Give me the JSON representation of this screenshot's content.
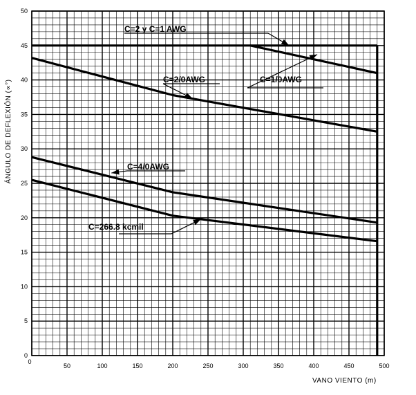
{
  "chart_data": {
    "type": "line",
    "xlabel": "VANO VIENTO (m)",
    "ylabel": "ÁNGULO DE DEFLEXIÓN (∝°)",
    "xlim": [
      0,
      500
    ],
    "ylim": [
      0,
      50
    ],
    "x_ticks": [
      0,
      50,
      100,
      150,
      200,
      250,
      300,
      350,
      400,
      450,
      500
    ],
    "y_ticks": [
      0,
      5,
      10,
      15,
      20,
      25,
      30,
      35,
      40,
      45,
      50
    ],
    "grid": true,
    "series": [
      {
        "name": "C=2 y C=1 AWG",
        "x": [
          0,
          490
        ],
        "y": [
          45,
          45
        ]
      },
      {
        "name": "C=1/0AWG",
        "x": [
          310,
          490
        ],
        "y": [
          45,
          41
        ]
      },
      {
        "name": "C=2/0AWG",
        "x": [
          0,
          200,
          490
        ],
        "y": [
          43.2,
          37.8,
          32.5
        ]
      },
      {
        "name": "C=4/0AWG",
        "x": [
          0,
          200,
          490
        ],
        "y": [
          28.8,
          23.7,
          19.3
        ]
      },
      {
        "name": "C=266.8 kcmil",
        "x": [
          0,
          200,
          490
        ],
        "y": [
          25.5,
          20.3,
          16.6
        ]
      }
    ],
    "vertical_limit_x": 490,
    "annotations": [
      {
        "text": "C=2 y C=1 AWG",
        "target": [
          365,
          45
        ]
      },
      {
        "text": "C=1/0AWG",
        "target": [
          405,
          43.7
        ]
      },
      {
        "text": "C=2/0AWG",
        "target": [
          228,
          37.3
        ]
      },
      {
        "text": "C=4/0AWG",
        "target": [
          113,
          26.5
        ]
      },
      {
        "text": "C=266.8 kcmil",
        "target": [
          240,
          19.8
        ]
      }
    ]
  }
}
